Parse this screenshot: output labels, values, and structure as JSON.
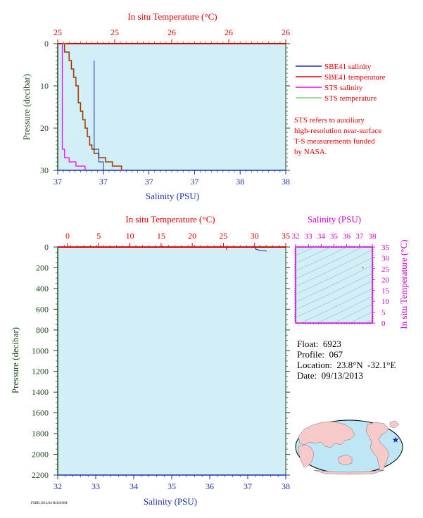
{
  "colors": {
    "panel_bg": "#d2eef7",
    "temperature": "#dd0000",
    "salinity": "#1a2fb0",
    "pressure": "#1f4d1f",
    "sts_salinity": "#ee00ee",
    "sts_temperature": "#7fcf7f",
    "inset": "#cc00cc",
    "note": "#dd0000"
  },
  "top_panel": {
    "temp_axis_label": "In situ Temperature (°C)",
    "temp_ticks": [
      "25",
      "25",
      "26",
      "26",
      "26"
    ],
    "salinity_axis_label": "Salinity (PSU)",
    "salinity_ticks": [
      "37",
      "37",
      "37",
      "37",
      "38",
      "38"
    ],
    "pressure_axis_label": "Pressure (decibar)",
    "pressure_ticks": [
      "0",
      "10",
      "20",
      "30"
    ],
    "legend": [
      {
        "label": "SBE41 salinity",
        "color": "#1a2fb0"
      },
      {
        "label": "SBE41 temperature",
        "color": "#dd0000"
      },
      {
        "label": "STS salinity",
        "color": "#ee00ee"
      },
      {
        "label": "STS temperature",
        "color": "#7fcf7f"
      }
    ],
    "note_lines": [
      "STS refers to auxiliary",
      "high-resolution near-surface",
      "T-S measurements funded",
      "by NASA."
    ]
  },
  "bottom_panel": {
    "temp_axis_label": "In situ Temperature (°C)",
    "temp_ticks": [
      "0",
      "5",
      "10",
      "15",
      "20",
      "25",
      "30",
      "35"
    ],
    "salinity_axis_label": "Salinity (PSU)",
    "salinity_ticks": [
      "32",
      "33",
      "34",
      "35",
      "36",
      "37",
      "38"
    ],
    "pressure_axis_label": "Pressure (decibar)",
    "pressure_ticks": [
      "0",
      "200",
      "400",
      "600",
      "800",
      "1000",
      "1200",
      "1400",
      "1600",
      "1800",
      "2000",
      "2200"
    ]
  },
  "inset": {
    "salinity_label": "Salinity (PSU)",
    "salinity_ticks": [
      "32",
      "33",
      "34",
      "35",
      "36",
      "37",
      "38"
    ],
    "temp_label": "In situ Temperature (°C)",
    "temp_ticks": [
      "0",
      "5",
      "10",
      "15",
      "20",
      "25",
      "30",
      "35"
    ]
  },
  "info": {
    "float_label": "Float:",
    "float_value": "6923",
    "profile_label": "Profile:",
    "profile_value": "067",
    "location_label": "Location:",
    "location_value": "23.8°N  -32.1°E",
    "date_label": "Date:",
    "date_value": "09/13/2013"
  },
  "footer": "FSBR 2013/04 ROSSOM",
  "chart_data": [
    {
      "type": "line",
      "xlabel_top": "In situ Temperature (°C)",
      "xlabel_bottom": "Salinity (PSU)",
      "ylabel": "Pressure (decibar)",
      "temp_lim": [
        25.0,
        26.0
      ],
      "salinity_lim": [
        37.0,
        38.0
      ],
      "pressure_lim": [
        0,
        30
      ],
      "series": [
        {
          "name": "SBE41 salinity",
          "axis": "salinity",
          "pressure": [
            4,
            10,
            15,
            20,
            25,
            28,
            30
          ],
          "values": [
            37.16,
            37.16,
            37.16,
            37.16,
            37.16,
            37.18,
            37.2
          ]
        },
        {
          "name": "SBE41 temperature",
          "axis": "temperature",
          "pressure": [
            0,
            2,
            4,
            6,
            8,
            10,
            12,
            14,
            16,
            18,
            20,
            22,
            24,
            25,
            26,
            27,
            28,
            29,
            30
          ],
          "values": [
            25.02,
            25.03,
            25.05,
            25.06,
            25.07,
            25.08,
            25.09,
            25.09,
            25.1,
            25.11,
            25.12,
            25.13,
            25.14,
            25.15,
            25.16,
            25.18,
            25.21,
            25.24,
            25.28
          ]
        },
        {
          "name": "STS salinity",
          "axis": "salinity",
          "pressure": [
            0,
            2,
            5,
            10,
            15,
            20,
            25,
            27,
            28,
            29,
            30
          ],
          "values": [
            37.02,
            37.02,
            37.02,
            37.02,
            37.02,
            37.02,
            37.02,
            37.03,
            37.05,
            37.08,
            37.12
          ]
        },
        {
          "name": "STS temperature",
          "axis": "temperature",
          "pressure": [
            0,
            2,
            4,
            6,
            8,
            10,
            12,
            14,
            16,
            18,
            20,
            22,
            24,
            25,
            26,
            27,
            28,
            29,
            30
          ],
          "values": [
            25.02,
            25.03,
            25.05,
            25.06,
            25.07,
            25.08,
            25.09,
            25.09,
            25.1,
            25.11,
            25.12,
            25.13,
            25.14,
            25.15,
            25.16,
            25.18,
            25.21,
            25.24,
            25.28
          ]
        }
      ]
    },
    {
      "type": "line",
      "xlabel_top": "In situ Temperature (°C)",
      "xlabel_bottom": "Salinity (PSU)",
      "ylabel": "Pressure (decibar)",
      "temp_lim": [
        0,
        35
      ],
      "salinity_lim": [
        32,
        38
      ],
      "pressure_lim": [
        0,
        2200
      ],
      "series": [
        {
          "name": "SBE41 temperature",
          "axis": "temperature",
          "pressure": [
            0,
            30
          ],
          "values": [
            25.5,
            25.5
          ]
        },
        {
          "name": "SBE41 salinity",
          "axis": "salinity",
          "pressure": [
            0,
            20,
            30,
            40
          ],
          "values": [
            37.2,
            37.2,
            37.3,
            37.5
          ]
        }
      ]
    },
    {
      "type": "scatter",
      "xlabel": "Salinity (PSU)",
      "ylabel": "In situ Temperature (°C)",
      "xlim": [
        32,
        38
      ],
      "ylim": [
        0,
        35
      ],
      "series": [
        {
          "name": "",
          "x": [
            37.2,
            37.3
          ],
          "y": [
            25.5,
            25.3
          ]
        }
      ]
    }
  ]
}
